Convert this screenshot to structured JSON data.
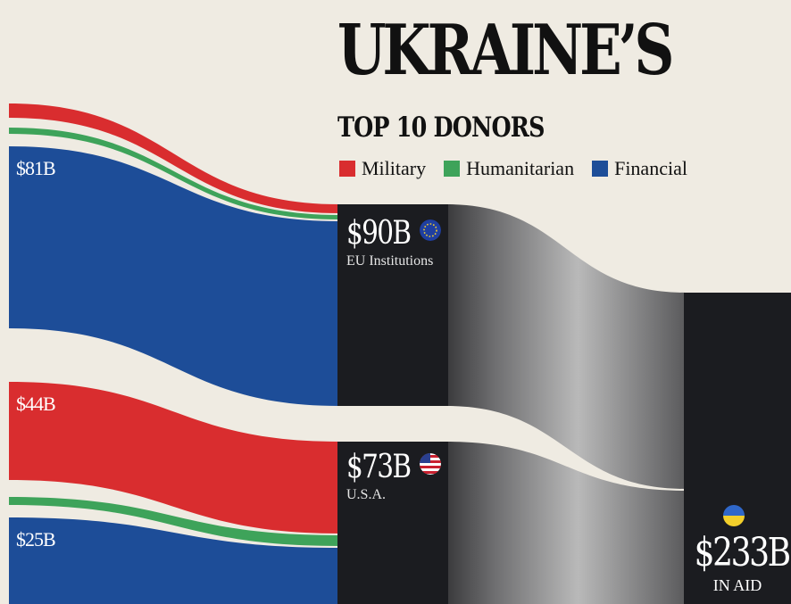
{
  "header": {
    "title": "UKRAINE’S",
    "subtitle": "TOP 10 DONORS"
  },
  "legend": [
    {
      "label": "Military",
      "color": "#d92d2f"
    },
    {
      "label": "Humanitarian",
      "color": "#3ea35a"
    },
    {
      "label": "Financial",
      "color": "#1d4d98"
    }
  ],
  "donors": [
    {
      "amount": "$90B",
      "name": "EU Institutions",
      "icon": "eu-flag-icon"
    },
    {
      "amount": "$73B",
      "name": "U.S.A.",
      "icon": "us-flag-icon"
    }
  ],
  "total": {
    "amount": "$233B",
    "caption": "IN AID",
    "icon": "ukraine-flag-icon"
  },
  "value_labels": [
    "$81B",
    "$44B",
    "$25B"
  ],
  "colors": {
    "background": "#efebe2",
    "military": "#d92d2f",
    "humanitarian": "#3ea35a",
    "financial": "#1d4d98",
    "node": "#1b1c20",
    "flow": "#8a8a8a"
  },
  "chart_data": {
    "type": "sankey",
    "title": "UKRAINE’S",
    "subtitle": "TOP 10 DONORS",
    "nodes": [
      "EU Institutions",
      "U.S.A.",
      "IN AID"
    ],
    "links": [
      {
        "source": "Financial",
        "target": "EU Institutions",
        "value": 81,
        "label": "$81B"
      },
      {
        "source": "Military",
        "target": "U.S.A.",
        "value": 44,
        "label": "$44B"
      },
      {
        "source": "Financial",
        "target": "U.S.A.",
        "value": 25,
        "label": "$25B"
      },
      {
        "source": "EU Institutions",
        "target": "IN AID",
        "value": 90,
        "label": "$90B"
      },
      {
        "source": "U.S.A.",
        "target": "IN AID",
        "value": 73,
        "label": "$73B"
      }
    ],
    "totals": {
      "EU Institutions": 90,
      "U.S.A.": 73,
      "IN AID": 233
    },
    "legend_position": "top-right"
  }
}
